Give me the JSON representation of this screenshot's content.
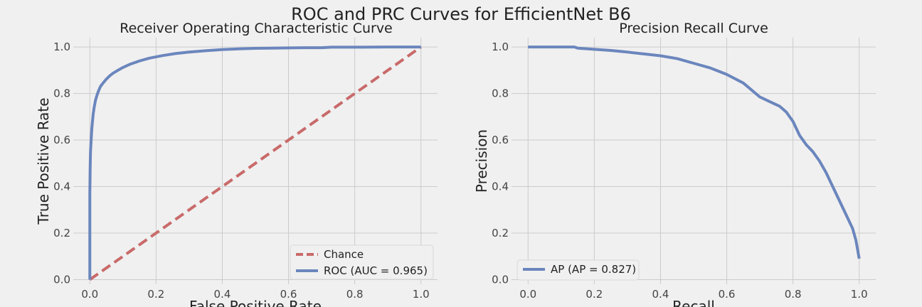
{
  "figure": {
    "title": "ROC and PRC Curves for EfficientNet B6"
  },
  "colors": {
    "background": "#f0f0f0",
    "grid": "#cbcbcb",
    "roc_line": "#6b86bd",
    "chance_line": "#c96a6a",
    "ap_line": "#6b86bd",
    "legend_bg": "#f0f0f0",
    "legend_border": "#d8d8d8"
  },
  "chart_data": [
    {
      "type": "line",
      "title": "Receiver Operating Characteristic Curve",
      "xlabel": "False Positive Rate",
      "ylabel": "True Positive Rate",
      "xlim": [
        -0.05,
        1.05
      ],
      "ylim": [
        -0.02,
        1.04
      ],
      "xticks": [
        0.0,
        0.2,
        0.4,
        0.6,
        0.8,
        1.0
      ],
      "yticks": [
        0.0,
        0.2,
        0.4,
        0.6,
        0.8,
        1.0
      ],
      "tick_labels_x": [
        "0.0",
        "0.2",
        "0.4",
        "0.6",
        "0.8",
        "1.0"
      ],
      "tick_labels_y": [
        "0.0",
        "0.2",
        "0.4",
        "0.6",
        "0.8",
        "1.0"
      ],
      "grid": true,
      "legend_position": "bottom-right",
      "series": [
        {
          "name": "Chance",
          "style": "dashed",
          "color": "#c96a6a",
          "x": [
            0.0,
            1.0
          ],
          "y": [
            0.0,
            1.0
          ]
        },
        {
          "name": "ROC (AUC = 0.965)",
          "style": "solid",
          "color": "#6b86bd",
          "x": [
            0.0,
            0.0,
            0.001,
            0.002,
            0.004,
            0.006,
            0.008,
            0.01,
            0.013,
            0.017,
            0.021,
            0.026,
            0.032,
            0.04,
            0.05,
            0.06,
            0.07,
            0.085,
            0.1,
            0.12,
            0.15,
            0.18,
            0.22,
            0.26,
            0.3,
            0.35,
            0.4,
            0.45,
            0.5,
            0.55,
            0.6,
            0.65,
            0.7,
            0.73,
            0.8,
            0.9,
            1.0
          ],
          "y": [
            0.0,
            0.37,
            0.48,
            0.55,
            0.6,
            0.65,
            0.68,
            0.71,
            0.74,
            0.77,
            0.79,
            0.81,
            0.83,
            0.845,
            0.862,
            0.876,
            0.887,
            0.9,
            0.912,
            0.925,
            0.94,
            0.952,
            0.963,
            0.972,
            0.978,
            0.984,
            0.989,
            0.992,
            0.994,
            0.995,
            0.996,
            0.997,
            0.997,
            0.999,
            0.999,
            1.0,
            1.0
          ]
        }
      ]
    },
    {
      "type": "line",
      "title": "Precision Recall Curve",
      "xlabel": "Recall",
      "ylabel": "Precision",
      "xlim": [
        -0.05,
        1.05
      ],
      "ylim": [
        -0.02,
        1.04
      ],
      "xticks": [
        0.0,
        0.2,
        0.4,
        0.6,
        0.8,
        1.0
      ],
      "yticks": [
        0.0,
        0.2,
        0.4,
        0.6,
        0.8,
        1.0
      ],
      "tick_labels_x": [
        "0.0",
        "0.2",
        "0.4",
        "0.6",
        "0.8",
        "1.0"
      ],
      "tick_labels_y": [
        "0.0",
        "0.2",
        "0.4",
        "0.6",
        "0.8",
        "1.0"
      ],
      "grid": true,
      "legend_position": "bottom-left",
      "series": [
        {
          "name": "AP (AP = 0.827)",
          "style": "solid",
          "color": "#6b86bd",
          "x": [
            0.0,
            0.05,
            0.1,
            0.14,
            0.15,
            0.2,
            0.25,
            0.3,
            0.35,
            0.4,
            0.45,
            0.5,
            0.55,
            0.6,
            0.65,
            0.7,
            0.73,
            0.76,
            0.78,
            0.8,
            0.82,
            0.84,
            0.86,
            0.88,
            0.9,
            0.92,
            0.94,
            0.96,
            0.98,
            0.99,
            1.0
          ],
          "y": [
            1.0,
            1.0,
            1.0,
            1.0,
            0.995,
            0.99,
            0.985,
            0.978,
            0.97,
            0.962,
            0.95,
            0.93,
            0.91,
            0.882,
            0.845,
            0.785,
            0.765,
            0.745,
            0.72,
            0.68,
            0.62,
            0.58,
            0.55,
            0.51,
            0.46,
            0.4,
            0.34,
            0.28,
            0.22,
            0.17,
            0.09
          ]
        }
      ]
    }
  ]
}
